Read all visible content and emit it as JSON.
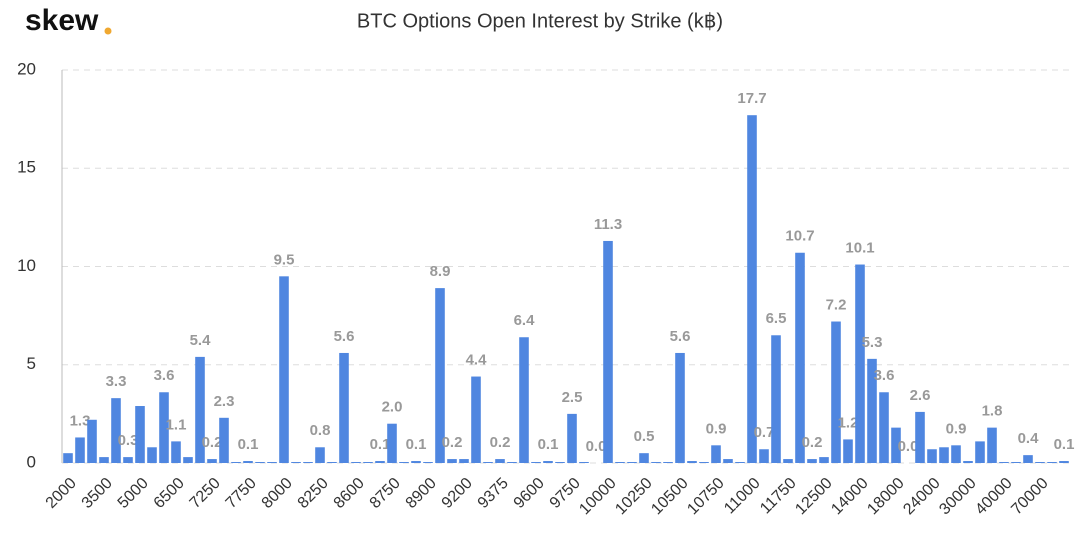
{
  "brand": "skew",
  "chart_data": {
    "type": "bar",
    "title": "BTC Options Open Interest by Strike (k฿)",
    "categories": [
      "2000",
      null,
      null,
      "3500",
      null,
      null,
      "5000",
      null,
      null,
      "6500",
      null,
      null,
      "7250",
      null,
      null,
      "7750",
      null,
      null,
      "8000",
      null,
      null,
      "8250",
      null,
      null,
      "8600",
      null,
      null,
      "8750",
      null,
      null,
      "8900",
      null,
      null,
      "9200",
      null,
      null,
      "9375",
      null,
      null,
      "9600",
      null,
      null,
      "9750",
      null,
      null,
      "10000",
      null,
      null,
      "10250",
      null,
      null,
      "10500",
      null,
      null,
      "10750",
      null,
      null,
      "11000",
      null,
      null,
      "11750",
      null,
      null,
      "12500",
      null,
      null,
      "14000",
      null,
      null,
      "18000",
      null,
      null,
      "24000",
      null,
      null,
      "30000",
      null,
      null,
      "40000",
      null,
      null,
      "70000",
      null,
      null
    ],
    "values": [
      0.5,
      1.3,
      2.2,
      0.3,
      3.3,
      0.3,
      2.9,
      0.8,
      3.6,
      1.1,
      0.3,
      5.4,
      0.2,
      2.3,
      0.05,
      0.1,
      0.05,
      0.05,
      9.5,
      0.05,
      0.05,
      0.8,
      0.05,
      5.6,
      0.05,
      0.05,
      0.1,
      2.0,
      0.05,
      0.1,
      0.05,
      8.9,
      0.2,
      0.2,
      4.4,
      0.05,
      0.2,
      0.05,
      6.4,
      0.05,
      0.1,
      0.05,
      2.5,
      0.05,
      0.0,
      11.3,
      0.05,
      0.05,
      0.5,
      0.05,
      0.05,
      5.6,
      0.1,
      0.05,
      0.9,
      0.2,
      0.05,
      17.7,
      0.7,
      6.5,
      0.2,
      10.7,
      0.2,
      0.3,
      7.2,
      1.2,
      10.1,
      5.3,
      3.6,
      1.8,
      0.0,
      2.6,
      0.7,
      0.8,
      0.9,
      0.1,
      1.1,
      1.8,
      0.05,
      0.05,
      0.4,
      0.05,
      0.05,
      0.1
    ],
    "value_labels": [
      null,
      "1.3",
      null,
      null,
      "3.3",
      "0.3",
      null,
      null,
      "3.6",
      "1.1",
      null,
      "5.4",
      "0.2",
      "2.3",
      null,
      "0.1",
      null,
      null,
      "9.5",
      null,
      null,
      "0.8",
      null,
      "5.6",
      null,
      null,
      "0.1",
      "2.0",
      null,
      "0.1",
      null,
      "8.9",
      "0.2",
      null,
      "4.4",
      null,
      "0.2",
      null,
      "6.4",
      null,
      "0.1",
      null,
      "2.5",
      null,
      "0.0",
      "11.3",
      null,
      null,
      "0.5",
      null,
      null,
      "5.6",
      null,
      null,
      "0.9",
      null,
      null,
      "17.7",
      "0.7",
      "6.5",
      null,
      "10.7",
      "0.2",
      null,
      "7.2",
      "1.2",
      "10.1",
      "5.3",
      "3.6",
      null,
      "0.0",
      "2.6",
      null,
      null,
      "0.9",
      null,
      null,
      "1.8",
      null,
      null,
      "0.4",
      null,
      null,
      "0.1"
    ],
    "color": "#4f86e0",
    "ylim": [
      0,
      20
    ],
    "yticks": [
      0,
      5,
      10,
      15,
      20
    ],
    "grid": true
  }
}
